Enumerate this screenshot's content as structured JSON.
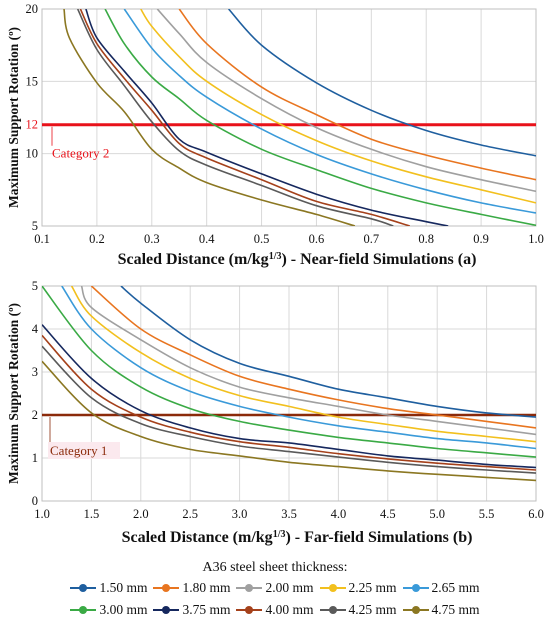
{
  "chart_data": [
    {
      "type": "line",
      "xlabel": "Scaled Distance (m/kg",
      "xlabel_sup": "1/3",
      "xlabel_tail": ") - Near-field Simulations (a)",
      "ylabel": "Maximum Support Rotation (º)",
      "xlim": [
        0.1,
        1.0
      ],
      "ylim": [
        5,
        20
      ],
      "x_ticks": [
        "0.1",
        "0.2",
        "0.3",
        "0.4",
        "0.5",
        "0.6",
        "0.7",
        "0.8",
        "0.9",
        "1.0"
      ],
      "y_ticks": [
        {
          "value": 5,
          "label": "5"
        },
        {
          "value": 10,
          "label": "10"
        },
        {
          "value": 12,
          "label": "12",
          "highlight": true
        },
        {
          "value": 15,
          "label": "15"
        },
        {
          "value": 20,
          "label": "20"
        }
      ],
      "threshold": {
        "value": 12,
        "label": "Category 2",
        "color": "#e8121a"
      },
      "series": [
        {
          "name": "1.50 mm",
          "color": "#1f5f9f",
          "points": [
            [
              0.44,
              20
            ],
            [
              0.5,
              17.5
            ],
            [
              0.6,
              14.9
            ],
            [
              0.7,
              13.0
            ],
            [
              0.8,
              11.6
            ],
            [
              0.9,
              10.6
            ],
            [
              1.0,
              9.85
            ]
          ]
        },
        {
          "name": "1.80 mm",
          "color": "#e87520",
          "points": [
            [
              0.35,
              20
            ],
            [
              0.4,
              17.6
            ],
            [
              0.5,
              14.6
            ],
            [
              0.6,
              12.7
            ],
            [
              0.7,
              11.0
            ],
            [
              0.8,
              9.9
            ],
            [
              0.9,
              9.0
            ],
            [
              1.0,
              8.2
            ]
          ]
        },
        {
          "name": "2.00 mm",
          "color": "#a0a0a0",
          "points": [
            [
              0.31,
              20
            ],
            [
              0.35,
              18.3
            ],
            [
              0.4,
              16.3
            ],
            [
              0.5,
              13.8
            ],
            [
              0.6,
              11.8
            ],
            [
              0.7,
              10.3
            ],
            [
              0.8,
              9.1
            ],
            [
              0.9,
              8.2
            ],
            [
              1.0,
              7.4
            ]
          ]
        },
        {
          "name": "2.25 mm",
          "color": "#f2c01e",
          "points": [
            [
              0.28,
              20
            ],
            [
              0.3,
              18.8
            ],
            [
              0.35,
              16.7
            ],
            [
              0.4,
              15.0
            ],
            [
              0.5,
              12.7
            ],
            [
              0.6,
              10.9
            ],
            [
              0.7,
              9.5
            ],
            [
              0.8,
              8.4
            ],
            [
              0.9,
              7.5
            ],
            [
              1.0,
              6.6
            ]
          ]
        },
        {
          "name": "2.65 mm",
          "color": "#3a9ad9",
          "points": [
            [
              0.25,
              20
            ],
            [
              0.3,
              17.3
            ],
            [
              0.35,
              15.4
            ],
            [
              0.4,
              13.9
            ],
            [
              0.5,
              11.7
            ],
            [
              0.6,
              9.95
            ],
            [
              0.7,
              8.6
            ],
            [
              0.8,
              7.5
            ],
            [
              0.9,
              6.6
            ],
            [
              1.0,
              5.9
            ]
          ]
        },
        {
          "name": "3.00 mm",
          "color": "#3aaa45",
          "points": [
            [
              0.215,
              20
            ],
            [
              0.25,
              17.6
            ],
            [
              0.3,
              15.3
            ],
            [
              0.35,
              13.8
            ],
            [
              0.4,
              12.3
            ],
            [
              0.5,
              10.3
            ],
            [
              0.6,
              8.9
            ],
            [
              0.7,
              7.6
            ],
            [
              0.8,
              6.6
            ],
            [
              0.9,
              5.8
            ],
            [
              1.0,
              5.05
            ]
          ]
        },
        {
          "name": "3.75 mm",
          "color": "#16285e",
          "points": [
            [
              0.18,
              20
            ],
            [
              0.2,
              18.0
            ],
            [
              0.25,
              15.7
            ],
            [
              0.3,
              13.5
            ],
            [
              0.35,
              11.0
            ],
            [
              0.4,
              10.1
            ],
            [
              0.5,
              8.6
            ],
            [
              0.6,
              7.2
            ],
            [
              0.7,
              6.1
            ],
            [
              0.8,
              5.3
            ],
            [
              0.84,
              5.0
            ]
          ]
        },
        {
          "name": "4.00 mm",
          "color": "#a5411b",
          "points": [
            [
              0.17,
              20
            ],
            [
              0.2,
              17.6
            ],
            [
              0.25,
              15.2
            ],
            [
              0.3,
              13.0
            ],
            [
              0.35,
              10.7
            ],
            [
              0.4,
              9.7
            ],
            [
              0.5,
              8.2
            ],
            [
              0.6,
              6.7
            ],
            [
              0.7,
              5.8
            ],
            [
              0.77,
              5.0
            ]
          ]
        },
        {
          "name": "4.25 mm",
          "color": "#5a5a5a",
          "points": [
            [
              0.165,
              20
            ],
            [
              0.2,
              17.2
            ],
            [
              0.25,
              14.7
            ],
            [
              0.3,
              12.2
            ],
            [
              0.35,
              10.2
            ],
            [
              0.4,
              9.2
            ],
            [
              0.5,
              7.8
            ],
            [
              0.6,
              6.4
            ],
            [
              0.7,
              5.5
            ],
            [
              0.74,
              5.0
            ]
          ]
        },
        {
          "name": "4.75 mm",
          "color": "#8b7722",
          "points": [
            [
              0.14,
              20
            ],
            [
              0.15,
              18.0
            ],
            [
              0.2,
              14.9
            ],
            [
              0.25,
              12.9
            ],
            [
              0.3,
              10.3
            ],
            [
              0.35,
              9.0
            ],
            [
              0.4,
              8.0
            ],
            [
              0.5,
              6.8
            ],
            [
              0.6,
              5.8
            ],
            [
              0.67,
              5.0
            ]
          ]
        }
      ]
    },
    {
      "type": "line",
      "xlabel": "Scaled Distance (m/kg",
      "xlabel_sup": "1/3",
      "xlabel_tail": ") - Far-field Simulations (b)",
      "ylabel": "Maximum Support Rotation (º)",
      "xlim": [
        1.0,
        6.0
      ],
      "ylim": [
        0,
        5
      ],
      "x_ticks": [
        "1.0",
        "1.5",
        "2.0",
        "2.5",
        "3.0",
        "3.5",
        "4.0",
        "4.5",
        "5.0",
        "5.5",
        "6.0"
      ],
      "y_ticks": [
        {
          "value": 0,
          "label": "0"
        },
        {
          "value": 1,
          "label": "1"
        },
        {
          "value": 2,
          "label": "2"
        },
        {
          "value": 3,
          "label": "3"
        },
        {
          "value": 4,
          "label": "4"
        },
        {
          "value": 5,
          "label": "5"
        }
      ],
      "threshold": {
        "value": 2,
        "label": "Category 1",
        "color": "#8b2a0a"
      },
      "series": [
        {
          "name": "1.50 mm",
          "color": "#1f5f9f",
          "points": [
            [
              1.8,
              5.0
            ],
            [
              2.0,
              4.6
            ],
            [
              2.5,
              3.75
            ],
            [
              3.0,
              3.2
            ],
            [
              3.5,
              2.9
            ],
            [
              4.0,
              2.6
            ],
            [
              4.5,
              2.4
            ],
            [
              5.0,
              2.2
            ],
            [
              5.5,
              2.05
            ],
            [
              6.0,
              1.95
            ]
          ]
        },
        {
          "name": "1.80 mm",
          "color": "#e87520",
          "points": [
            [
              1.5,
              5.0
            ],
            [
              2.0,
              4.0
            ],
            [
              2.5,
              3.4
            ],
            [
              3.0,
              2.9
            ],
            [
              3.5,
              2.6
            ],
            [
              4.0,
              2.35
            ],
            [
              4.5,
              2.15
            ],
            [
              5.0,
              2.0
            ],
            [
              5.5,
              1.85
            ],
            [
              6.0,
              1.7
            ]
          ]
        },
        {
          "name": "2.00 mm",
          "color": "#a0a0a0",
          "points": [
            [
              1.4,
              5.0
            ],
            [
              1.5,
              4.5
            ],
            [
              2.0,
              3.75
            ],
            [
              2.5,
              3.1
            ],
            [
              3.0,
              2.65
            ],
            [
              3.5,
              2.4
            ],
            [
              4.0,
              2.2
            ],
            [
              4.5,
              2.0
            ],
            [
              5.0,
              1.85
            ],
            [
              5.5,
              1.7
            ],
            [
              6.0,
              1.55
            ]
          ]
        },
        {
          "name": "2.25 mm",
          "color": "#f2c01e",
          "points": [
            [
              1.3,
              5.0
            ],
            [
              1.5,
              4.3
            ],
            [
              2.0,
              3.45
            ],
            [
              2.5,
              2.85
            ],
            [
              3.0,
              2.45
            ],
            [
              3.5,
              2.2
            ],
            [
              4.0,
              1.95
            ],
            [
              4.5,
              1.78
            ],
            [
              5.0,
              1.62
            ],
            [
              5.5,
              1.5
            ],
            [
              6.0,
              1.38
            ]
          ]
        },
        {
          "name": "2.65 mm",
          "color": "#3a9ad9",
          "points": [
            [
              1.2,
              5.0
            ],
            [
              1.5,
              4.0
            ],
            [
              2.0,
              3.1
            ],
            [
              2.5,
              2.55
            ],
            [
              3.0,
              2.2
            ],
            [
              3.5,
              1.95
            ],
            [
              4.0,
              1.75
            ],
            [
              4.5,
              1.6
            ],
            [
              5.0,
              1.45
            ],
            [
              5.5,
              1.35
            ],
            [
              6.0,
              1.22
            ]
          ]
        },
        {
          "name": "3.00 mm",
          "color": "#3aaa45",
          "points": [
            [
              1.0,
              5.0
            ],
            [
              1.5,
              3.5
            ],
            [
              2.0,
              2.65
            ],
            [
              2.5,
              2.15
            ],
            [
              3.0,
              1.85
            ],
            [
              3.5,
              1.65
            ],
            [
              4.0,
              1.48
            ],
            [
              4.5,
              1.35
            ],
            [
              5.0,
              1.22
            ],
            [
              5.5,
              1.12
            ],
            [
              6.0,
              1.02
            ]
          ]
        },
        {
          "name": "3.75 mm",
          "color": "#16285e",
          "points": [
            [
              1.0,
              4.1
            ],
            [
              1.5,
              2.85
            ],
            [
              2.0,
              2.1
            ],
            [
              2.5,
              1.7
            ],
            [
              3.0,
              1.45
            ],
            [
              3.5,
              1.35
            ],
            [
              4.0,
              1.2
            ],
            [
              4.5,
              1.05
            ],
            [
              5.0,
              0.95
            ],
            [
              5.5,
              0.85
            ],
            [
              6.0,
              0.78
            ]
          ]
        },
        {
          "name": "4.00 mm",
          "color": "#a5411b",
          "points": [
            [
              1.0,
              3.85
            ],
            [
              1.5,
              2.6
            ],
            [
              2.0,
              1.95
            ],
            [
              2.5,
              1.6
            ],
            [
              3.0,
              1.38
            ],
            [
              3.5,
              1.25
            ],
            [
              4.0,
              1.1
            ],
            [
              4.5,
              0.98
            ],
            [
              5.0,
              0.88
            ],
            [
              5.5,
              0.8
            ],
            [
              6.0,
              0.72
            ]
          ]
        },
        {
          "name": "4.25 mm",
          "color": "#5a5a5a",
          "points": [
            [
              1.0,
              3.6
            ],
            [
              1.5,
              2.4
            ],
            [
              2.0,
              1.8
            ],
            [
              2.5,
              1.5
            ],
            [
              3.0,
              1.28
            ],
            [
              3.5,
              1.15
            ],
            [
              4.0,
              1.02
            ],
            [
              4.5,
              0.9
            ],
            [
              5.0,
              0.8
            ],
            [
              5.5,
              0.72
            ],
            [
              6.0,
              0.65
            ]
          ]
        },
        {
          "name": "4.75 mm",
          "color": "#8b7722",
          "points": [
            [
              1.0,
              3.25
            ],
            [
              1.5,
              2.05
            ],
            [
              2.0,
              1.5
            ],
            [
              2.5,
              1.2
            ],
            [
              3.0,
              1.05
            ],
            [
              3.5,
              0.9
            ],
            [
              4.0,
              0.8
            ],
            [
              4.5,
              0.7
            ],
            [
              5.0,
              0.62
            ],
            [
              5.5,
              0.55
            ],
            [
              6.0,
              0.48
            ]
          ]
        }
      ]
    }
  ],
  "legend": {
    "title": "A36 steel sheet thickness:",
    "placement": "bottom"
  }
}
